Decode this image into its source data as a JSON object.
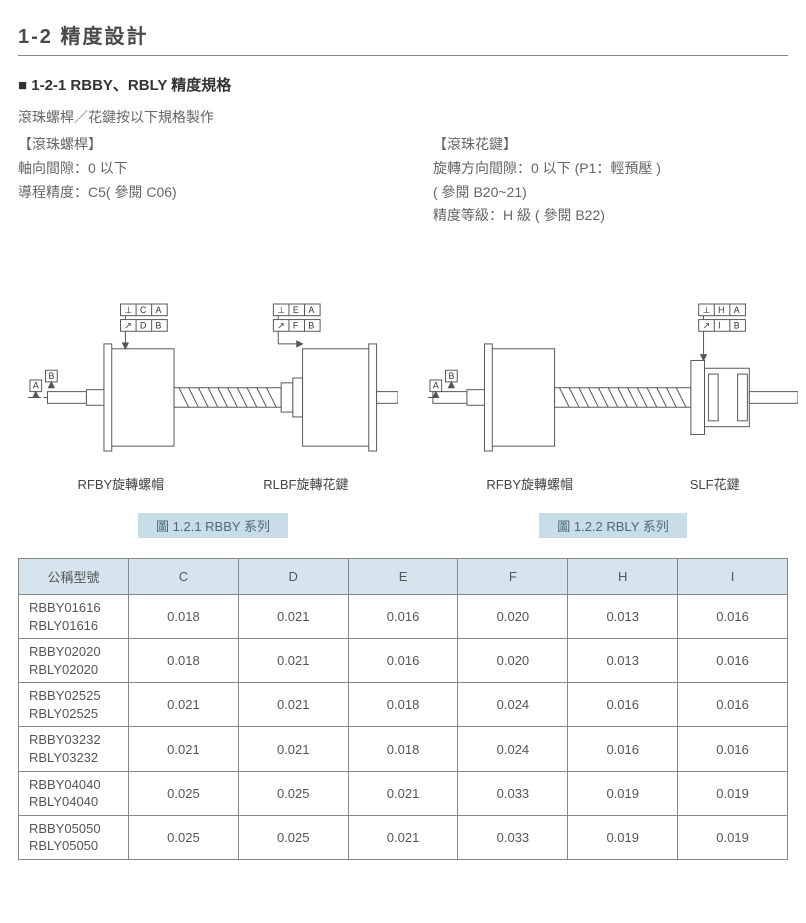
{
  "section_title": "1-2 精度設計",
  "sub_title": "1-2-1 RBBY、RBLY 精度規格",
  "intro": "滾珠螺桿／花鍵按以下規格製作",
  "left_spec": {
    "heading": "【滾珠螺桿】",
    "l1": "軸向間隙：0 以下",
    "l2": "導程精度：C5( 參閱 C06)"
  },
  "right_spec": {
    "heading": "【滾珠花鍵】",
    "l1": "旋轉方向間隙：0 以下 (P1：輕預壓 )",
    "l2": "( 參閱 B20~21)",
    "l3": "精度等級：H 級 ( 參閱 B22)"
  },
  "fig_left": {
    "label_left": "RFBY旋轉螺帽",
    "label_right": "RLBF旋轉花鍵",
    "caption": "圖 1.2.1 RBBY 系列",
    "datum_top1_sym": "⊥",
    "datum_top1_col": "C",
    "datum_top1_ref": "A",
    "datum_top2_sym": "↗",
    "datum_top2_col": "D",
    "datum_top2_ref": "B",
    "datum_top3_sym": "⊥",
    "datum_top3_col": "E",
    "datum_top3_ref": "A",
    "datum_top4_sym": "↗",
    "datum_top4_col": "F",
    "datum_top4_ref": "B",
    "datum_side1": "A",
    "datum_side2": "B"
  },
  "fig_right": {
    "label_left": "RFBY旋轉螺帽",
    "label_right": "SLF花鍵",
    "caption": "圖 1.2.2 RBLY 系列",
    "datum_top1_sym": "⊥",
    "datum_top1_col": "H",
    "datum_top1_ref": "A",
    "datum_top2_sym": "↗",
    "datum_top2_col": "I",
    "datum_top2_ref": "B",
    "datum_side1": "A",
    "datum_side2": "B"
  },
  "table": {
    "headers": [
      "公稱型號",
      "C",
      "D",
      "E",
      "F",
      "H",
      "I"
    ],
    "rows": [
      {
        "model": "RBBY01616\nRBLY01616",
        "vals": [
          "0.018",
          "0.021",
          "0.016",
          "0.020",
          "0.013",
          "0.016"
        ]
      },
      {
        "model": "RBBY02020\nRBLY02020",
        "vals": [
          "0.018",
          "0.021",
          "0.016",
          "0.020",
          "0.013",
          "0.016"
        ]
      },
      {
        "model": "RBBY02525\nRBLY02525",
        "vals": [
          "0.021",
          "0.021",
          "0.018",
          "0.024",
          "0.016",
          "0.016"
        ]
      },
      {
        "model": "RBBY03232\nRBLY03232",
        "vals": [
          "0.021",
          "0.021",
          "0.018",
          "0.024",
          "0.016",
          "0.016"
        ]
      },
      {
        "model": "RBBY04040\nRBLY04040",
        "vals": [
          "0.025",
          "0.025",
          "0.021",
          "0.033",
          "0.019",
          "0.019"
        ]
      },
      {
        "model": "RBBY05050\nRBLY05050",
        "vals": [
          "0.025",
          "0.025",
          "0.021",
          "0.033",
          "0.019",
          "0.019"
        ]
      }
    ]
  },
  "colors": {
    "stroke": "#555555",
    "fill": "#ffffff",
    "caption_bg": "#c9dde8"
  }
}
